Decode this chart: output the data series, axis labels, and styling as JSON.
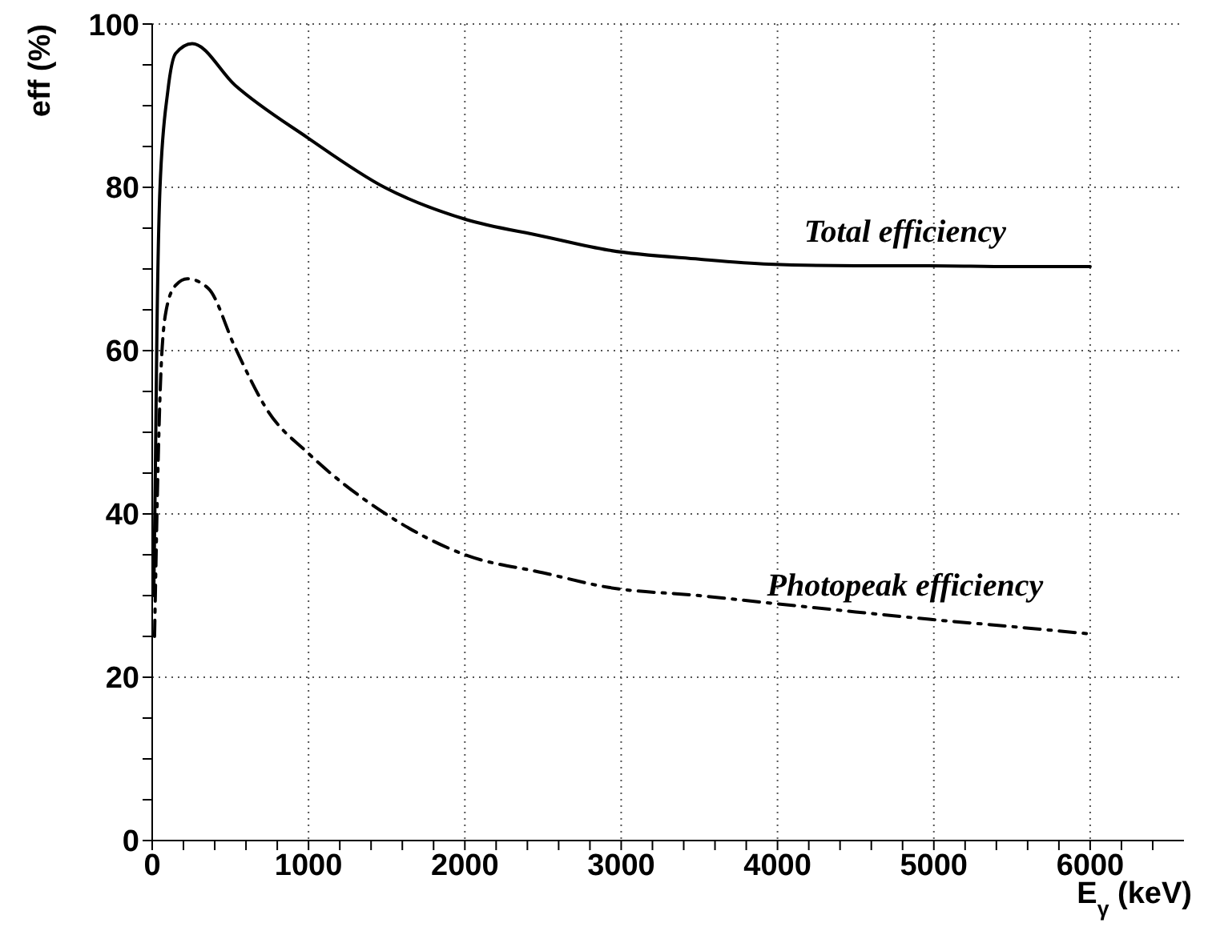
{
  "chart_data": {
    "type": "line",
    "xlabel": "E$_{γ}$ (keV)",
    "ylabel": "eff (%)",
    "xlim": [
      0,
      6600
    ],
    "xticks": [
      0,
      {
        "value": 200,
        "label": null
      },
      {
        "value": 400,
        "label": null
      },
      {
        "value": 600,
        "label": null
      },
      {
        "value": 800,
        "label": null
      },
      1000,
      {
        "value": 1200,
        "label": null
      },
      {
        "value": 1400,
        "label": null
      },
      {
        "value": 1600,
        "label": null
      },
      {
        "value": 1800,
        "label": null
      },
      2000,
      {
        "value": 2200,
        "label": null
      },
      {
        "value": 2400,
        "label": null
      },
      {
        "value": 2600,
        "label": null
      },
      {
        "value": 2800,
        "label": null
      },
      3000,
      {
        "value": 3200,
        "label": null
      },
      {
        "value": 3400,
        "label": null
      },
      {
        "value": 3600,
        "label": null
      },
      {
        "value": 3800,
        "label": null
      },
      4000,
      {
        "value": 4200,
        "label": null
      },
      {
        "value": 4400,
        "label": null
      },
      {
        "value": 4600,
        "label": null
      },
      {
        "value": 4800,
        "label": null
      },
      5000,
      {
        "value": 5200,
        "label": null
      },
      {
        "value": 5400,
        "label": null
      },
      {
        "value": 5600,
        "label": null
      },
      {
        "value": 5800,
        "label": null
      },
      6000,
      {
        "value": 6200,
        "label": null
      },
      {
        "value": 6400,
        "label": null
      }
    ],
    "ylim": [
      0,
      100
    ],
    "yticks": [
      0,
      {
        "value": 5,
        "label": null
      },
      {
        "value": 10,
        "label": null
      },
      {
        "value": 15,
        "label": null
      },
      20,
      {
        "value": 25,
        "label": null
      },
      {
        "value": 30,
        "label": null
      },
      {
        "value": 35,
        "label": null
      },
      40,
      {
        "value": 45,
        "label": null
      },
      {
        "value": 50,
        "label": null
      },
      {
        "value": 55,
        "label": null
      },
      60,
      {
        "value": 65,
        "label": null
      },
      {
        "value": 70,
        "label": null
      },
      {
        "value": 75,
        "label": null
      },
      80,
      {
        "value": 85,
        "label": null
      },
      {
        "value": 90,
        "label": null
      },
      {
        "value": 95,
        "label": null
      },
      100
    ],
    "grid": true,
    "marker": "none",
    "series": [
      {
        "name": "Total efficiency",
        "color": "#000000",
        "line_style": "solid",
        "x": [
          10,
          20,
          30,
          50,
          100,
          150,
          256,
          530,
          1000,
          1486,
          2000,
          2500,
          2920,
          3500,
          3945,
          4500,
          4970,
          5500,
          6000
        ],
        "values": [
          30,
          45,
          62,
          80,
          91.8,
          96.4,
          97.6,
          92.5,
          86,
          80,
          76.1,
          74,
          72.3,
          71.2,
          70.6,
          70.4,
          70.4,
          70.3,
          70.3
        ]
      },
      {
        "name": "Photopeak efficiency",
        "color": "#000000",
        "line_style": "dashed",
        "x": [
          15,
          20,
          35,
          55,
          90,
          150,
          225,
          360,
          530,
          740,
          1000,
          1486,
          2000,
          2500,
          2920,
          3500,
          3945,
          4500,
          4970,
          5500,
          6000
        ],
        "values": [
          25,
          30,
          44,
          57,
          65,
          68,
          68.8,
          67.6,
          60.4,
          52.6,
          47.4,
          40.1,
          35,
          32.8,
          31,
          30,
          29.1,
          28,
          27.1,
          26.2,
          25.3
        ]
      }
    ]
  }
}
